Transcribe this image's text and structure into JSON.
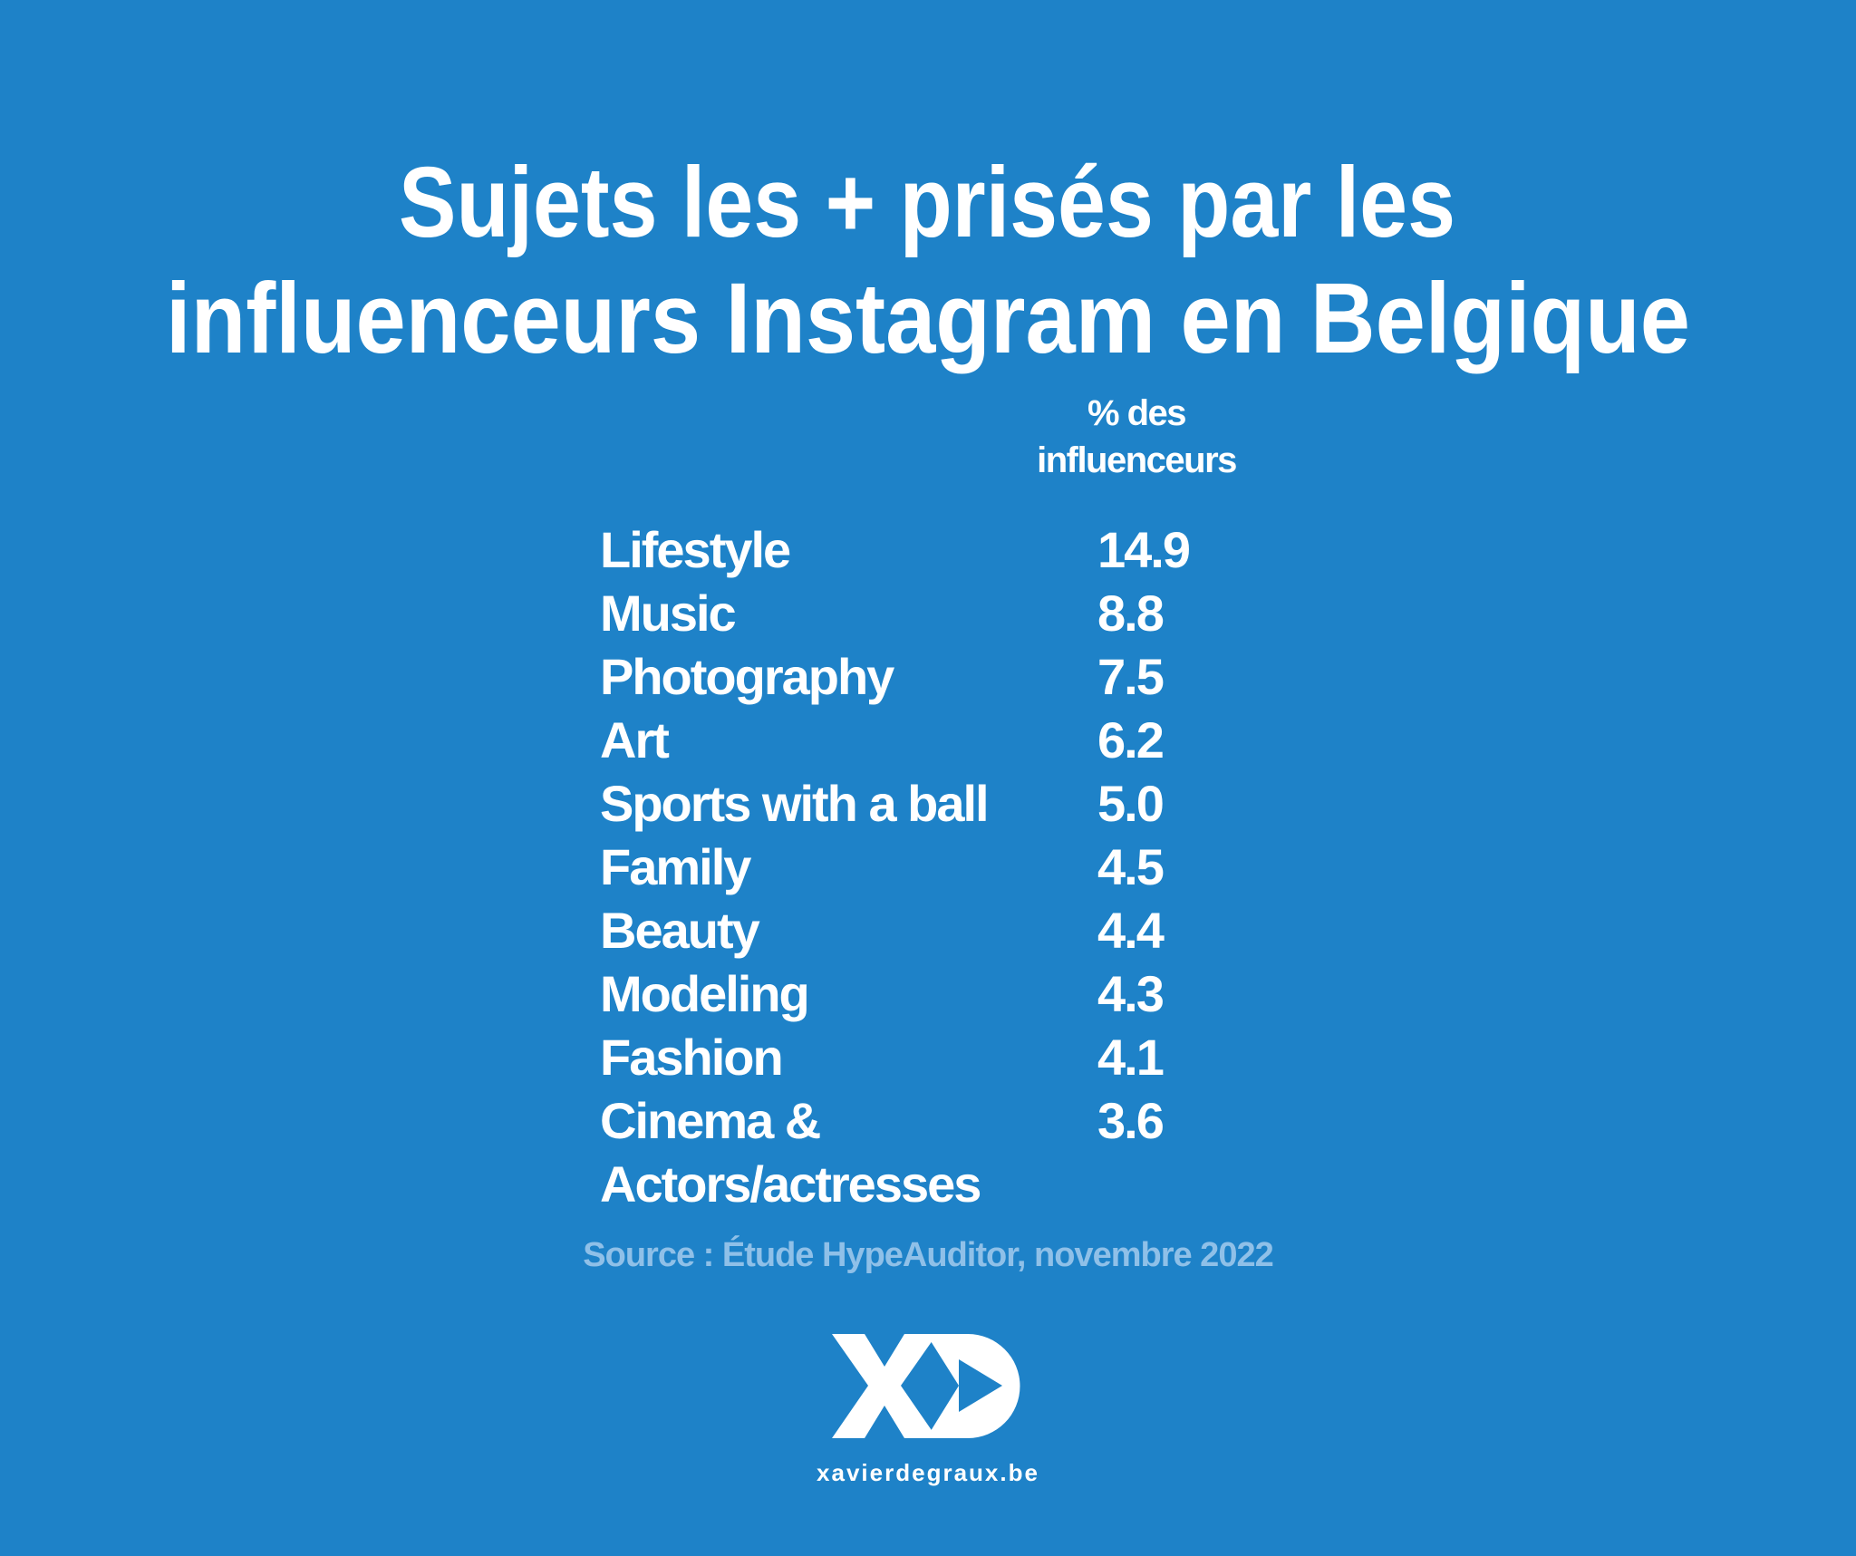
{
  "title": [
    "Sujets les + prisés par les",
    "influenceurs Instagram en Belgique"
  ],
  "table": {
    "header": [
      "% des",
      "influenceurs"
    ],
    "rows": [
      [
        "Lifestyle",
        "14.9"
      ],
      [
        "Music",
        "8.8"
      ],
      [
        "Photography",
        "7.5"
      ],
      [
        "Art",
        "6.2"
      ],
      [
        "Sports with a ball",
        "5.0"
      ],
      [
        "Family",
        "4.5"
      ],
      [
        "Beauty",
        "4.4"
      ],
      [
        "Modeling",
        "4.3"
      ],
      [
        "Fashion",
        "4.1"
      ],
      [
        "Cinema & Actors/actresses",
        "3.6"
      ]
    ]
  },
  "source": "Source : Étude HypeAuditor, novembre 2022",
  "website": "xavierdegraux.be"
}
